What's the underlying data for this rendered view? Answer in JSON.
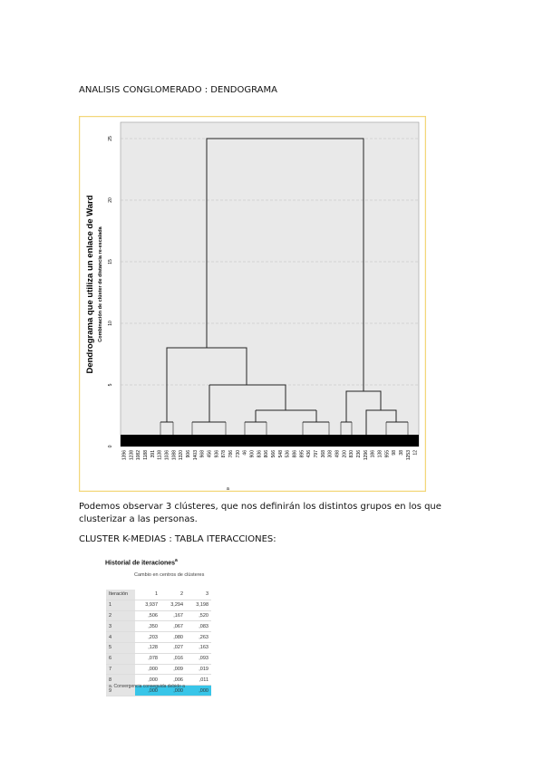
{
  "heading": "ANALISIS CONGLOMERADO : DENDOGRAMA",
  "figure": {
    "title": "Dendrograma que utiliza un enlace de Ward",
    "subtitle": "Combinación de clúster de distancia re-escalada",
    "yticks": [
      "0",
      "5",
      "10",
      "15",
      "20",
      "25"
    ],
    "leaves": [
      "1396",
      "1238",
      "1082",
      "1188",
      "391",
      "1138",
      "1036",
      "1088",
      "1320",
      "906",
      "1403",
      "968",
      "456",
      "936",
      "878",
      "786",
      "730",
      "46",
      "900",
      "836",
      "806",
      "566",
      "548",
      "536",
      "886",
      "895",
      "436",
      "797",
      "368",
      "308",
      "498",
      "200",
      "830",
      "236",
      "1296",
      "186",
      "138",
      "955",
      "98",
      "38",
      "1253",
      "12"
    ],
    "note": "a"
  },
  "paragraph": "Podemos observar 3 clústeres, que nos definirán los distintos grupos en los que clusterizar a las personas.",
  "subheading": "CLUSTER K-MEDIAS : TABLA ITERACCIONES:",
  "table": {
    "title": "Historial de iteraciones",
    "title_mark": "a",
    "group_header": "Cambio en centros de clústeres",
    "columns": [
      "Iteración",
      "1",
      "2",
      "3"
    ],
    "rows": [
      [
        "1",
        "3,937",
        "3,294",
        "3,198"
      ],
      [
        "2",
        ",506",
        ",167",
        ",520"
      ],
      [
        "3",
        ",350",
        ",067",
        ",083"
      ],
      [
        "4",
        ",203",
        ",080",
        ",263"
      ],
      [
        "5",
        ",128",
        ",027",
        ",163"
      ],
      [
        "6",
        ",078",
        ",016",
        ",093"
      ],
      [
        "7",
        ",000",
        ",009",
        ",019"
      ],
      [
        "8",
        ",000",
        ",006",
        ",011"
      ],
      [
        "9",
        ",000",
        ",000",
        ",000"
      ]
    ],
    "footnote": "a. Convergencia conseguida debido a"
  }
}
